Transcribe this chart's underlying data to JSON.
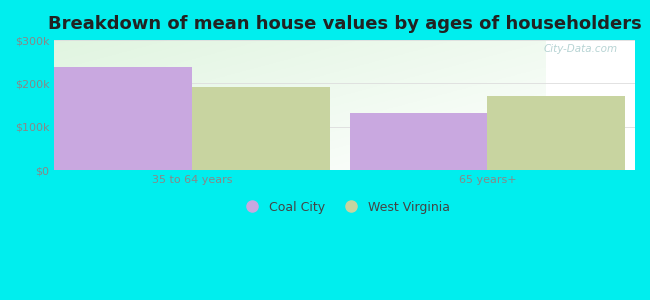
{
  "title": "Breakdown of mean house values by ages of householders",
  "categories": [
    "35 to 64 years",
    "65 years+"
  ],
  "coal_city_values": [
    237000,
    132000
  ],
  "west_virginia_values": [
    193000,
    172000
  ],
  "ylim": [
    0,
    300000
  ],
  "yticks": [
    0,
    100000,
    200000,
    300000
  ],
  "ytick_labels": [
    "$0",
    "$100k",
    "$200k",
    "$300k"
  ],
  "coal_city_color": "#c9a8e0",
  "west_virginia_color": "#c8d4a0",
  "background_color": "#00eeee",
  "legend_labels": [
    "Coal City",
    "West Virginia"
  ],
  "bar_width": 0.28,
  "title_fontsize": 13,
  "tick_fontsize": 8,
  "legend_fontsize": 9,
  "watermark": "City-Data.com",
  "group_centers": [
    0.28,
    0.88
  ]
}
